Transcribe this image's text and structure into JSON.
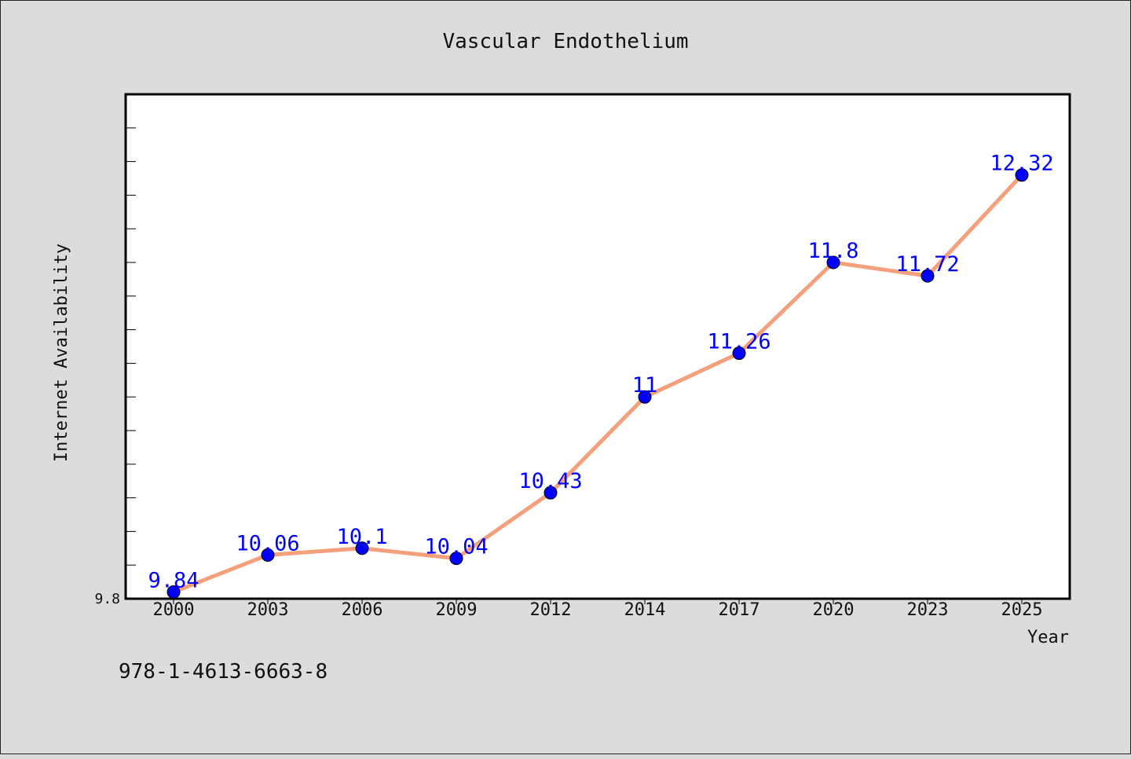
{
  "chart_data": {
    "type": "line",
    "title": "Vascular Endothelium",
    "xlabel": "Year",
    "ylabel": "Internet Availability",
    "categories": [
      "2000",
      "2003",
      "2006",
      "2009",
      "2012",
      "2014",
      "2017",
      "2020",
      "2023",
      "2025"
    ],
    "series": [
      {
        "values": [
          9.84,
          10.06,
          10.1,
          10.04,
          10.43,
          11,
          11.26,
          11.8,
          11.72,
          12.32
        ],
        "labels": [
          "9.84",
          "10.06",
          "10.1",
          "10.04",
          "10.43",
          "11",
          "11.26",
          "11.8",
          "11.72",
          "12.32"
        ]
      }
    ],
    "ytick_labels": [
      "9.8"
    ],
    "ylim": [
      9.8,
      12.8
    ],
    "grid": false,
    "colors": {
      "line": "#f4a07c",
      "marker": "#0000ff",
      "data_label": "#0000ff",
      "background": "#dcdcdc",
      "plot_background": "#ffffff"
    }
  },
  "footer": {
    "isbn": "978-1-4613-6663-8"
  }
}
